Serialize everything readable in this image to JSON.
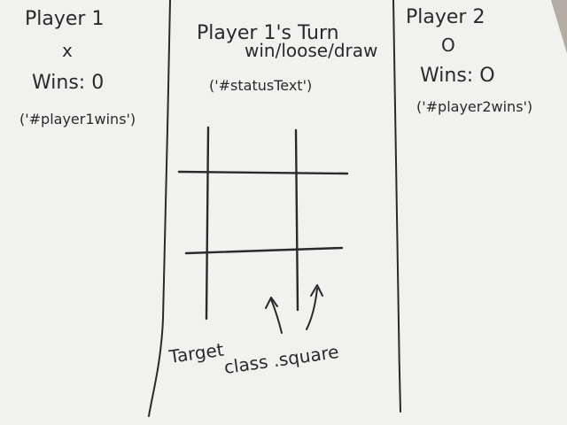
{
  "player1": {
    "title": "Player 1",
    "mark": "x",
    "wins": "Wins: 0",
    "id_note": "('#player1wins')"
  },
  "center": {
    "turn": "Player 1's Turn",
    "result": "win/loose/draw",
    "id_note": "('#statusText')",
    "target_line1": "Target",
    "target_line2": "class .square"
  },
  "player2": {
    "title": "Player 2",
    "mark": "O",
    "wins": "Wins: O",
    "id_note": "('#player2wins')"
  },
  "colors": {
    "ink": "#2a2a2a",
    "paper": "#f1f1ef",
    "background": "#a8a29a"
  }
}
